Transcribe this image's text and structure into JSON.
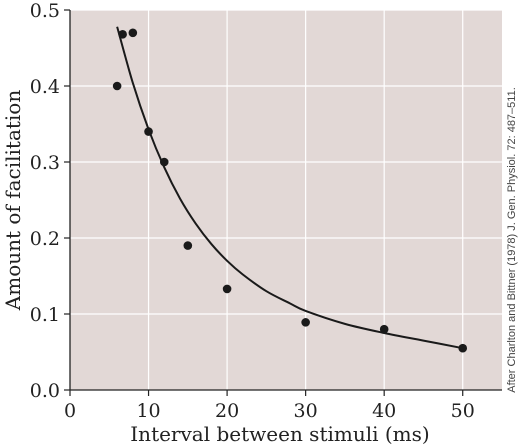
{
  "chart_data": {
    "type": "scatter",
    "xlabel": "Interval between stimuli (ms)",
    "ylabel": "Amount of facilitation",
    "xlim": [
      0,
      55
    ],
    "ylim": [
      0,
      0.5
    ],
    "x_ticks": [
      0,
      10,
      20,
      30,
      40,
      50
    ],
    "y_ticks": [
      0.0,
      0.1,
      0.2,
      0.3,
      0.4,
      0.5
    ],
    "x_tick_labels": [
      "0",
      "10",
      "20",
      "30",
      "40",
      "50"
    ],
    "y_tick_labels": [
      "0.0",
      "0.1",
      "0.2",
      "0.3",
      "0.4",
      "0.5"
    ],
    "grid": true,
    "points": [
      {
        "x": 6,
        "y": 0.4
      },
      {
        "x": 6.7,
        "y": 0.468
      },
      {
        "x": 8,
        "y": 0.47
      },
      {
        "x": 10,
        "y": 0.34
      },
      {
        "x": 12,
        "y": 0.3
      },
      {
        "x": 15,
        "y": 0.19
      },
      {
        "x": 20,
        "y": 0.133
      },
      {
        "x": 30,
        "y": 0.089
      },
      {
        "x": 40,
        "y": 0.08
      },
      {
        "x": 50,
        "y": 0.055
      }
    ],
    "fit_curve": {
      "x": [
        6,
        8,
        10,
        12,
        14,
        16,
        18,
        20,
        22,
        25,
        28,
        30,
        35,
        40,
        45,
        50
      ],
      "y": [
        0.478,
        0.404,
        0.343,
        0.293,
        0.252,
        0.219,
        0.192,
        0.17,
        0.152,
        0.13,
        0.114,
        0.104,
        0.087,
        0.075,
        0.065,
        0.055
      ]
    },
    "source_note": "After Charlton and Bittner (1978) J. Gen. Physiol. 72: 487–511.",
    "colors": {
      "plot_background": "#e2d8d6",
      "grid": "#ffffff",
      "marker": "#1a1a1a",
      "line": "#1a1a1a",
      "axis": "#222222"
    }
  }
}
